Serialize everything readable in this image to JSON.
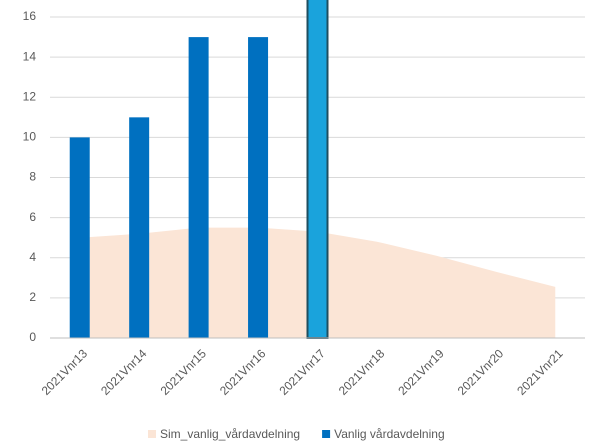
{
  "chart_data": {
    "type": "bar_area",
    "categories": [
      "2021Vnr13",
      "2021Vnr14",
      "2021Vnr15",
      "2021Vnr16",
      "2021Vnr17",
      "2021Vnr18",
      "2021Vnr19",
      "2021Vnr20",
      "2021Vnr21"
    ],
    "series": [
      {
        "name": "Sim_vanlig_vårdavdelning",
        "kind": "area",
        "color": "#fbe5d6",
        "values": [
          5.0,
          5.2,
          5.5,
          5.5,
          5.3,
          4.8,
          4.1,
          3.3,
          2.55
        ]
      },
      {
        "name": "Vanlig vårdavdelning",
        "kind": "bar",
        "color": "#0070c0",
        "values": [
          10,
          11,
          15,
          15,
          17,
          null,
          null,
          null,
          null
        ]
      }
    ],
    "highlight": {
      "index": 4,
      "color": "#1aa3dc"
    },
    "ylim": [
      0,
      17
    ],
    "yticks": [
      0,
      2,
      4,
      6,
      8,
      10,
      12,
      14,
      16
    ],
    "grid": true,
    "legend": "bottom"
  }
}
